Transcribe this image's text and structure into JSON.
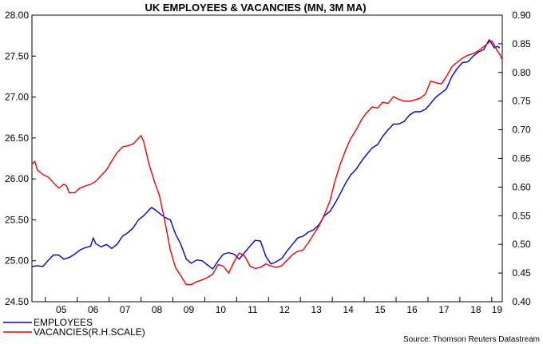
{
  "chart_data": {
    "type": "line",
    "title": "UK EMPLOYEES & VACANCIES (MN, 3M MA)",
    "source": "Source: Thomson Reuters Datastream",
    "x_tick_labels": [
      "05",
      "06",
      "07",
      "08",
      "09",
      "10",
      "11",
      "12",
      "13",
      "14",
      "15",
      "16",
      "17",
      "18",
      "19"
    ],
    "xlim": [
      2004.58,
      2019.33
    ],
    "left_axis": {
      "ylim": [
        24.5,
        28.0
      ],
      "tick_labels": [
        "24.50",
        "25.00",
        "25.50",
        "26.00",
        "26.50",
        "27.00",
        "27.50",
        "28.00"
      ]
    },
    "right_axis": {
      "ylim": [
        0.4,
        0.9
      ],
      "tick_labels": [
        "0.40",
        "0.45",
        "0.50",
        "0.55",
        "0.60",
        "0.65",
        "0.70",
        "0.75",
        "0.80",
        "0.85",
        "0.90"
      ]
    },
    "grid": false,
    "legend_position": "bottom-left",
    "series": [
      {
        "name": "EMPLOYEES",
        "axis": "left",
        "color": "#0000cc",
        "points": [
          [
            2004.58,
            24.93
          ],
          [
            2004.75,
            24.94
          ],
          [
            2004.92,
            24.93
          ],
          [
            2005.08,
            25.0
          ],
          [
            2005.25,
            25.07
          ],
          [
            2005.42,
            25.07
          ],
          [
            2005.58,
            25.02
          ],
          [
            2005.75,
            25.04
          ],
          [
            2005.92,
            25.08
          ],
          [
            2006.08,
            25.13
          ],
          [
            2006.25,
            25.16
          ],
          [
            2006.42,
            25.18
          ],
          [
            2006.5,
            25.28
          ],
          [
            2006.58,
            25.21
          ],
          [
            2006.75,
            25.17
          ],
          [
            2006.92,
            25.2
          ],
          [
            2007.08,
            25.15
          ],
          [
            2007.25,
            25.2
          ],
          [
            2007.42,
            25.3
          ],
          [
            2007.58,
            25.34
          ],
          [
            2007.75,
            25.4
          ],
          [
            2007.92,
            25.5
          ],
          [
            2008.08,
            25.55
          ],
          [
            2008.25,
            25.62
          ],
          [
            2008.33,
            25.65
          ],
          [
            2008.42,
            25.63
          ],
          [
            2008.58,
            25.58
          ],
          [
            2008.75,
            25.53
          ],
          [
            2008.92,
            25.5
          ],
          [
            2009.08,
            25.33
          ],
          [
            2009.25,
            25.2
          ],
          [
            2009.42,
            25.02
          ],
          [
            2009.58,
            24.97
          ],
          [
            2009.75,
            25.01
          ],
          [
            2009.92,
            25.0
          ],
          [
            2010.08,
            24.95
          ],
          [
            2010.25,
            24.9
          ],
          [
            2010.42,
            25.0
          ],
          [
            2010.58,
            25.08
          ],
          [
            2010.75,
            25.1
          ],
          [
            2010.92,
            25.08
          ],
          [
            2011.08,
            25.02
          ],
          [
            2011.25,
            25.1
          ],
          [
            2011.42,
            25.18
          ],
          [
            2011.58,
            25.25
          ],
          [
            2011.75,
            25.24
          ],
          [
            2011.92,
            25.05
          ],
          [
            2012.08,
            24.96
          ],
          [
            2012.25,
            24.99
          ],
          [
            2012.42,
            25.03
          ],
          [
            2012.58,
            25.12
          ],
          [
            2012.75,
            25.2
          ],
          [
            2012.92,
            25.28
          ],
          [
            2013.08,
            25.3
          ],
          [
            2013.25,
            25.35
          ],
          [
            2013.42,
            25.38
          ],
          [
            2013.58,
            25.44
          ],
          [
            2013.75,
            25.55
          ],
          [
            2013.92,
            25.6
          ],
          [
            2014.08,
            25.7
          ],
          [
            2014.25,
            25.82
          ],
          [
            2014.42,
            25.95
          ],
          [
            2014.58,
            26.05
          ],
          [
            2014.75,
            26.12
          ],
          [
            2014.92,
            26.22
          ],
          [
            2015.08,
            26.3
          ],
          [
            2015.25,
            26.38
          ],
          [
            2015.42,
            26.42
          ],
          [
            2015.58,
            26.52
          ],
          [
            2015.75,
            26.6
          ],
          [
            2015.92,
            26.67
          ],
          [
            2016.08,
            26.67
          ],
          [
            2016.25,
            26.7
          ],
          [
            2016.42,
            26.78
          ],
          [
            2016.58,
            26.82
          ],
          [
            2016.75,
            26.82
          ],
          [
            2016.92,
            26.85
          ],
          [
            2017.08,
            26.92
          ],
          [
            2017.25,
            27.0
          ],
          [
            2017.42,
            27.05
          ],
          [
            2017.58,
            27.1
          ],
          [
            2017.75,
            27.25
          ],
          [
            2017.92,
            27.35
          ],
          [
            2018.08,
            27.42
          ],
          [
            2018.25,
            27.43
          ],
          [
            2018.42,
            27.5
          ],
          [
            2018.58,
            27.55
          ],
          [
            2018.75,
            27.58
          ],
          [
            2018.92,
            27.7
          ],
          [
            2019.0,
            27.65
          ],
          [
            2019.08,
            27.6
          ],
          [
            2019.17,
            27.62
          ],
          [
            2019.25,
            27.6
          ]
        ]
      },
      {
        "name": "VACANCIES(R.H.SCALE)",
        "axis": "right",
        "color": "#ee0000",
        "points": [
          [
            2004.58,
            0.64
          ],
          [
            2004.67,
            0.645
          ],
          [
            2004.75,
            0.63
          ],
          [
            2004.92,
            0.622
          ],
          [
            2005.08,
            0.618
          ],
          [
            2005.25,
            0.608
          ],
          [
            2005.42,
            0.598
          ],
          [
            2005.58,
            0.605
          ],
          [
            2005.67,
            0.602
          ],
          [
            2005.75,
            0.59
          ],
          [
            2005.92,
            0.59
          ],
          [
            2006.08,
            0.598
          ],
          [
            2006.25,
            0.602
          ],
          [
            2006.42,
            0.605
          ],
          [
            2006.58,
            0.61
          ],
          [
            2006.75,
            0.62
          ],
          [
            2006.92,
            0.63
          ],
          [
            2007.08,
            0.645
          ],
          [
            2007.25,
            0.66
          ],
          [
            2007.42,
            0.67
          ],
          [
            2007.58,
            0.672
          ],
          [
            2007.75,
            0.675
          ],
          [
            2007.92,
            0.685
          ],
          [
            2008.0,
            0.69
          ],
          [
            2008.08,
            0.68
          ],
          [
            2008.25,
            0.64
          ],
          [
            2008.42,
            0.61
          ],
          [
            2008.58,
            0.585
          ],
          [
            2008.75,
            0.54
          ],
          [
            2008.92,
            0.49
          ],
          [
            2009.08,
            0.46
          ],
          [
            2009.25,
            0.445
          ],
          [
            2009.42,
            0.43
          ],
          [
            2009.58,
            0.43
          ],
          [
            2009.75,
            0.435
          ],
          [
            2009.92,
            0.438
          ],
          [
            2010.08,
            0.442
          ],
          [
            2010.25,
            0.448
          ],
          [
            2010.42,
            0.465
          ],
          [
            2010.58,
            0.462
          ],
          [
            2010.75,
            0.45
          ],
          [
            2010.92,
            0.47
          ],
          [
            2011.08,
            0.485
          ],
          [
            2011.25,
            0.48
          ],
          [
            2011.42,
            0.462
          ],
          [
            2011.58,
            0.458
          ],
          [
            2011.75,
            0.46
          ],
          [
            2011.92,
            0.466
          ],
          [
            2012.08,
            0.462
          ],
          [
            2012.25,
            0.46
          ],
          [
            2012.42,
            0.463
          ],
          [
            2012.58,
            0.472
          ],
          [
            2012.75,
            0.482
          ],
          [
            2012.92,
            0.488
          ],
          [
            2013.08,
            0.49
          ],
          [
            2013.25,
            0.503
          ],
          [
            2013.42,
            0.518
          ],
          [
            2013.58,
            0.532
          ],
          [
            2013.75,
            0.552
          ],
          [
            2013.92,
            0.575
          ],
          [
            2014.08,
            0.61
          ],
          [
            2014.25,
            0.64
          ],
          [
            2014.42,
            0.665
          ],
          [
            2014.58,
            0.685
          ],
          [
            2014.75,
            0.7
          ],
          [
            2014.92,
            0.718
          ],
          [
            2015.08,
            0.73
          ],
          [
            2015.25,
            0.74
          ],
          [
            2015.42,
            0.738
          ],
          [
            2015.58,
            0.748
          ],
          [
            2015.75,
            0.746
          ],
          [
            2015.92,
            0.758
          ],
          [
            2016.08,
            0.753
          ],
          [
            2016.25,
            0.75
          ],
          [
            2016.42,
            0.75
          ],
          [
            2016.58,
            0.752
          ],
          [
            2016.75,
            0.755
          ],
          [
            2016.92,
            0.762
          ],
          [
            2017.08,
            0.785
          ],
          [
            2017.25,
            0.782
          ],
          [
            2017.42,
            0.78
          ],
          [
            2017.58,
            0.793
          ],
          [
            2017.75,
            0.81
          ],
          [
            2017.92,
            0.818
          ],
          [
            2018.08,
            0.825
          ],
          [
            2018.25,
            0.83
          ],
          [
            2018.42,
            0.833
          ],
          [
            2018.58,
            0.838
          ],
          [
            2018.75,
            0.845
          ],
          [
            2018.92,
            0.853
          ],
          [
            2019.0,
            0.855
          ],
          [
            2019.08,
            0.848
          ],
          [
            2019.17,
            0.838
          ],
          [
            2019.25,
            0.832
          ],
          [
            2019.33,
            0.822
          ]
        ]
      }
    ]
  }
}
